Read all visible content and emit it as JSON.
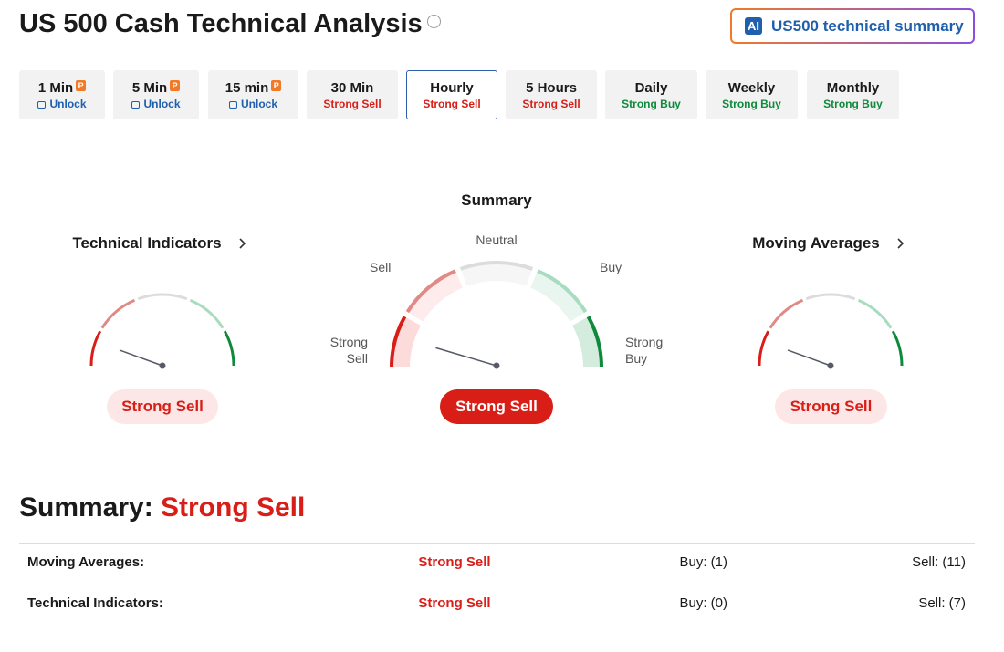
{
  "header": {
    "title": "US 500 Cash Technical Analysis",
    "ai_icon": "AI",
    "ai_button": "US500 technical summary"
  },
  "timeframes": [
    {
      "label": "1 Min",
      "status": "Unlock",
      "locked": true,
      "color": "#1f5fae"
    },
    {
      "label": "5 Min",
      "status": "Unlock",
      "locked": true,
      "color": "#1f5fae"
    },
    {
      "label": "15 min",
      "status": "Unlock",
      "locked": true,
      "color": "#1f5fae"
    },
    {
      "label": "30 Min",
      "status": "Strong Sell",
      "color": "#d91e18"
    },
    {
      "label": "Hourly",
      "status": "Strong Sell",
      "color": "#d91e18",
      "selected": true
    },
    {
      "label": "5 Hours",
      "status": "Strong Sell",
      "color": "#d91e18"
    },
    {
      "label": "Daily",
      "status": "Strong Buy",
      "color": "#0f8a3c"
    },
    {
      "label": "Weekly",
      "status": "Strong Buy",
      "color": "#0f8a3c"
    },
    {
      "label": "Monthly",
      "status": "Strong Buy",
      "color": "#0f8a3c"
    }
  ],
  "gauges": {
    "summary_title": "Summary",
    "scale": {
      "neutral": "Neutral",
      "sell": "Sell",
      "buy": "Buy",
      "strong_sell": "Strong Sell",
      "strong_buy": "Strong Buy"
    },
    "left": {
      "title": "Technical Indicators",
      "verdict": "Strong Sell"
    },
    "center": {
      "verdict": "Strong Sell"
    },
    "right": {
      "title": "Moving Averages",
      "verdict": "Strong Sell"
    }
  },
  "summary": {
    "label": "Summary:",
    "verdict": "Strong Sell"
  },
  "table": {
    "rows": [
      [
        "Moving Averages:",
        "Strong Sell",
        "Buy: (1)",
        "Sell: (11)"
      ],
      [
        "Technical Indicators:",
        "Strong Sell",
        "Buy: (0)",
        "Sell: (7)"
      ]
    ]
  }
}
